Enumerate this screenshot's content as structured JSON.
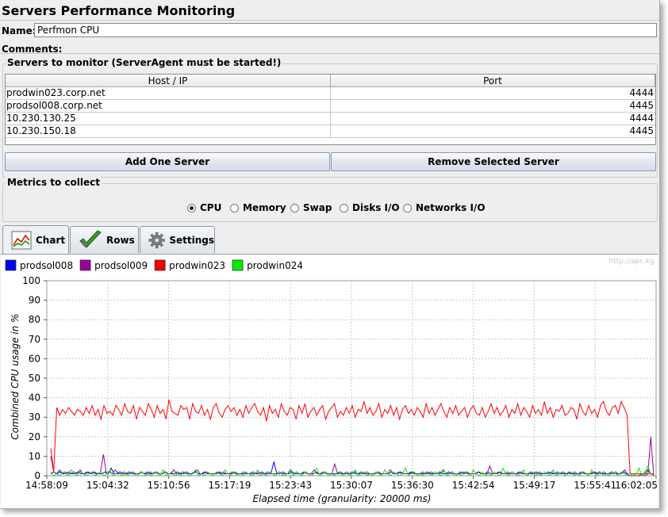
{
  "app": {
    "title": "Servers Performance Monitoring"
  },
  "name_field": {
    "label": "Name:",
    "value": "Perfmon CPU"
  },
  "comments": {
    "label": "Comments:"
  },
  "servers": {
    "group_label": "Servers to monitor (ServerAgent must be started!)",
    "columns": [
      "Host / IP",
      "Port"
    ],
    "rows": [
      {
        "host": "prodwin023.corp.net",
        "port": "4444"
      },
      {
        "host": "prodsol008.corp.net",
        "port": "4445"
      },
      {
        "host": "10.230.130.25",
        "port": "4444"
      },
      {
        "host": "10.230.150.18",
        "port": "4445"
      }
    ],
    "add_button": "Add One Server",
    "remove_button": "Remove Selected Server"
  },
  "metrics": {
    "group_label": "Metrics to collect",
    "options": [
      "CPU",
      "Memory",
      "Swap",
      "Disks I/O",
      "Networks I/O"
    ],
    "selected": "CPU"
  },
  "tabs": [
    {
      "label": "Chart",
      "icon": "chart-icon"
    },
    {
      "label": "Rows",
      "icon": "checkmark-icon"
    },
    {
      "label": "Settings",
      "icon": "gear-icon"
    }
  ],
  "watermark": "http://apc.kg",
  "chart_data": {
    "type": "line",
    "ylabel": "Combined CPU usage in %",
    "xlabel": "Elapsed time (granularity: 20000 ms)",
    "ylim": [
      0,
      100
    ],
    "yticks": [
      0,
      10,
      20,
      30,
      40,
      50,
      60,
      70,
      80,
      90,
      100
    ],
    "xticks": [
      "14:58:09",
      "15:04:32",
      "15:10:56",
      "15:17:19",
      "15:23:43",
      "15:30:07",
      "15:36:30",
      "15:42:54",
      "15:49:17",
      "15:55:41",
      "16:02:05"
    ],
    "grid": true,
    "legend": "top-left",
    "series": [
      {
        "name": "prodsol008",
        "color": "#0000ff",
        "values": [
          1,
          2,
          1,
          2,
          1,
          1,
          2,
          1,
          1,
          2,
          1,
          1,
          2,
          1,
          2,
          1,
          1,
          1,
          2,
          1,
          4,
          1,
          1,
          2,
          1,
          1,
          2,
          1,
          1,
          1,
          2,
          1,
          2,
          1,
          1,
          2,
          1,
          1,
          2,
          1,
          1,
          1,
          2,
          1,
          1,
          2,
          1,
          1,
          2,
          1,
          1,
          2,
          1,
          1,
          1,
          1,
          2,
          1,
          1,
          1,
          1,
          2,
          1,
          1,
          1,
          1,
          1,
          2,
          1,
          1,
          2,
          1,
          1,
          1,
          7,
          1,
          1,
          2,
          1,
          1,
          2,
          1,
          1,
          1,
          2,
          1,
          1,
          1,
          2,
          1,
          1,
          2,
          1,
          1,
          1,
          1,
          2,
          1,
          1,
          1,
          2,
          1,
          1,
          2,
          1,
          1,
          1,
          1,
          2,
          1,
          1,
          1,
          1,
          2,
          1,
          1,
          2,
          1,
          1,
          1,
          2,
          1,
          1,
          1,
          1,
          2,
          1,
          1,
          1,
          2,
          1,
          1,
          2,
          1,
          1,
          1,
          2,
          1,
          2,
          1,
          1,
          1,
          2,
          1,
          1,
          2,
          1,
          1,
          1,
          2,
          1,
          1,
          1,
          2,
          1,
          1,
          2,
          1,
          1,
          1,
          1,
          2,
          1,
          1,
          1,
          2,
          1,
          1,
          2,
          1,
          1,
          1,
          2,
          1,
          1,
          1,
          2,
          1,
          1,
          1,
          2,
          1,
          2,
          1,
          1,
          1,
          2,
          1,
          1,
          1,
          2,
          1,
          0,
          0,
          0,
          0,
          1,
          1,
          3,
          1,
          0
        ]
      },
      {
        "name": "prodsol009",
        "color": "#990099",
        "values": [
          10,
          2,
          1,
          3,
          1,
          2,
          1,
          1,
          2,
          1,
          3,
          1,
          1,
          2,
          1,
          2,
          1,
          2,
          11,
          1,
          2,
          1,
          3,
          1,
          1,
          2,
          1,
          1,
          2,
          1,
          1,
          2,
          1,
          1,
          2,
          1,
          2,
          1,
          1,
          2,
          1,
          1,
          3,
          1,
          1,
          2,
          1,
          1,
          1,
          2,
          3,
          1,
          1,
          2,
          1,
          1,
          1,
          2,
          1,
          2,
          1,
          1,
          2,
          1,
          1,
          1,
          2,
          1,
          1,
          1,
          1,
          2,
          1,
          1,
          2,
          1,
          1,
          1,
          2,
          1,
          1,
          1,
          3,
          1,
          2,
          1,
          1,
          2,
          1,
          1,
          3,
          1,
          1,
          2,
          1,
          1,
          1,
          6,
          1,
          1,
          1,
          2,
          1,
          1,
          2,
          1,
          1,
          1,
          2,
          1,
          1,
          1,
          2,
          1,
          1,
          1,
          3,
          1,
          1,
          2,
          1,
          1,
          1,
          2,
          1,
          1,
          1,
          2,
          1,
          1,
          2,
          1,
          1,
          1,
          3,
          1,
          1,
          2,
          1,
          1,
          1,
          2,
          1,
          1,
          1,
          1,
          2,
          1,
          1,
          1,
          5,
          1,
          1,
          2,
          1,
          1,
          2,
          1,
          1,
          1,
          2,
          1,
          1,
          1,
          2,
          1,
          1,
          2,
          1,
          1,
          1,
          2,
          1,
          1,
          1,
          2,
          1,
          1,
          1,
          2,
          1,
          1,
          2,
          1,
          1,
          1,
          2,
          1,
          1,
          2,
          1,
          1,
          1,
          2,
          1,
          1,
          3,
          1,
          0,
          0,
          0,
          0,
          1,
          0,
          1,
          20,
          0
        ]
      },
      {
        "name": "prodwin023",
        "color": "#ff0000",
        "values": [
          14,
          2,
          35,
          31,
          34,
          32,
          35,
          33,
          31,
          34,
          33,
          31,
          35,
          32,
          36,
          31,
          34,
          29,
          36,
          32,
          33,
          31,
          36,
          34,
          31,
          37,
          33,
          32,
          36,
          29,
          35,
          33,
          31,
          37,
          34,
          30,
          36,
          32,
          34,
          29,
          39,
          33,
          32,
          31,
          36,
          34,
          35,
          29,
          37,
          33,
          32,
          36,
          31,
          34,
          29,
          35,
          37,
          32,
          30,
          34,
          36,
          33,
          35,
          31,
          34,
          30,
          36,
          32,
          35,
          37,
          33,
          31,
          35,
          28,
          36,
          32,
          34,
          30,
          37,
          33,
          31,
          35,
          34,
          29,
          36,
          32,
          37,
          30,
          33,
          35,
          31,
          34,
          36,
          29,
          33,
          35,
          37,
          30,
          33,
          31,
          35,
          32,
          36,
          30,
          34,
          33,
          38,
          32,
          35,
          31,
          33,
          37,
          30,
          34,
          32,
          36,
          31,
          35,
          29,
          34,
          36,
          32,
          34,
          31,
          35,
          33,
          30,
          37,
          32,
          35,
          31,
          34,
          37,
          33,
          30,
          35,
          32,
          36,
          31,
          33,
          35,
          30,
          34,
          36,
          32,
          31,
          35,
          30,
          33,
          37,
          32,
          35,
          31,
          33,
          36,
          30,
          34,
          32,
          37,
          31,
          35,
          33,
          30,
          36,
          32,
          34,
          31,
          38,
          32,
          35,
          30,
          34,
          33,
          36,
          31,
          32,
          35,
          34,
          29,
          37,
          33,
          31,
          36,
          32,
          34,
          30,
          36,
          38,
          33,
          31,
          35,
          36,
          32,
          38,
          35,
          31,
          1,
          1,
          1,
          1,
          1,
          1,
          1,
          1,
          1
        ]
      },
      {
        "name": "prodwin024",
        "color": "#00ee00",
        "values": [
          2,
          0,
          1,
          0,
          2,
          1,
          0,
          3,
          1,
          0,
          2,
          1,
          0,
          1,
          2,
          0,
          1,
          2,
          0,
          1,
          3,
          0,
          1,
          2,
          0,
          1,
          0,
          2,
          1,
          0,
          1,
          2,
          0,
          1,
          0,
          2,
          1,
          0,
          3,
          0,
          1,
          2,
          0,
          1,
          0,
          2,
          1,
          0,
          1,
          3,
          0,
          1,
          0,
          2,
          1,
          0,
          2,
          1,
          0,
          3,
          1,
          0,
          2,
          0,
          1,
          0,
          2,
          1,
          0,
          1,
          3,
          0,
          1,
          0,
          2,
          1,
          0,
          2,
          1,
          0,
          1,
          3,
          0,
          2,
          1,
          0,
          2,
          1,
          0,
          1,
          4,
          0,
          1,
          2,
          0,
          1,
          0,
          2,
          1,
          0,
          2,
          0,
          1,
          3,
          0,
          1,
          2,
          0,
          1,
          0,
          2,
          1,
          0,
          3,
          1,
          0,
          2,
          1,
          0,
          1,
          4,
          0,
          1,
          2,
          0,
          1,
          0,
          2,
          1,
          0,
          2,
          1,
          0,
          3,
          0,
          1,
          2,
          0,
          1,
          0,
          2,
          1,
          0,
          3,
          1,
          0,
          2,
          0,
          1,
          0,
          2,
          1,
          0,
          4,
          1,
          0,
          2,
          1,
          0,
          1,
          3,
          0,
          1,
          2,
          0,
          1,
          0,
          2,
          1,
          0,
          3,
          0,
          1,
          2,
          0,
          1,
          2,
          0,
          1,
          0,
          2,
          1,
          0,
          3,
          1,
          0,
          2,
          0,
          1,
          0,
          2,
          1,
          0,
          2,
          1,
          0,
          0,
          1,
          0,
          4,
          0,
          2,
          5,
          1,
          0
        ]
      }
    ]
  }
}
